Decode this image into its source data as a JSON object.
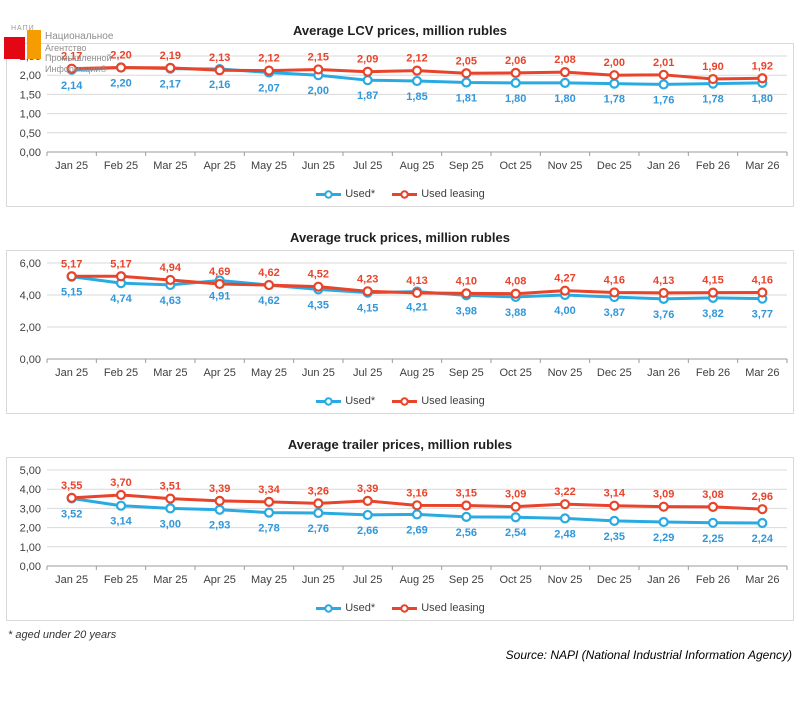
{
  "logo": {
    "mark": "НАПИ",
    "lines": [
      "Национальное",
      "Агентство",
      "Промышленной",
      "Информации®"
    ],
    "red": "#e30613",
    "orange": "#f59c00"
  },
  "colors": {
    "used_line": "#29abe2",
    "used_label": "#3097db",
    "leasing_line": "#e8442b",
    "leasing_label": "#e8442b",
    "grid": "#d9d9d9",
    "axis": "#9b9b9b",
    "tick_text": "#3f3f3f"
  },
  "footnote": "* aged under 20 years",
  "source": "Source: NAPI (National Industrial Information Agency)",
  "chart_data": [
    {
      "type": "line",
      "title": "Average LCV prices, million rubles",
      "categories": [
        "Jan 25",
        "Feb 25",
        "Mar 25",
        "Apr 25",
        "May 25",
        "Jun 25",
        "Jul 25",
        "Aug 25",
        "Sep 25",
        "Oct 25",
        "Nov 25",
        "Dec 25",
        "Jan 26",
        "Feb 26",
        "Mar 26"
      ],
      "ylim": [
        0,
        2.5
      ],
      "yticks": [
        "0,00",
        "0,50",
        "1,00",
        "1,50",
        "2,00",
        "2,50"
      ],
      "grid": true,
      "legend_position": "bottom",
      "decimal_separator": ",",
      "series": [
        {
          "name": "Used*",
          "color": "#29abe2",
          "label_color": "#3097db",
          "label_position": "below",
          "values": [
            2.14,
            2.2,
            2.17,
            2.16,
            2.07,
            2.0,
            1.87,
            1.85,
            1.81,
            1.8,
            1.8,
            1.78,
            1.76,
            1.78,
            1.8
          ]
        },
        {
          "name": "Used leasing",
          "color": "#e8442b",
          "label_color": "#e8442b",
          "label_position": "above",
          "values": [
            2.17,
            2.2,
            2.19,
            2.13,
            2.12,
            2.15,
            2.09,
            2.12,
            2.05,
            2.06,
            2.08,
            2.0,
            2.01,
            1.9,
            1.92
          ]
        }
      ]
    },
    {
      "type": "line",
      "title": "Average truck prices, million rubles",
      "categories": [
        "Jan 25",
        "Feb 25",
        "Mar 25",
        "Apr 25",
        "May 25",
        "Jun 25",
        "Jul 25",
        "Aug 25",
        "Sep 25",
        "Oct 25",
        "Nov 25",
        "Dec 25",
        "Jan 26",
        "Feb 26",
        "Mar 26"
      ],
      "ylim": [
        0,
        6
      ],
      "yticks": [
        "0,00",
        "2,00",
        "4,00",
        "6,00"
      ],
      "grid": true,
      "legend_position": "bottom",
      "decimal_separator": ",",
      "series": [
        {
          "name": "Used*",
          "color": "#29abe2",
          "label_color": "#3097db",
          "label_position": "below",
          "values": [
            5.15,
            4.74,
            4.63,
            4.91,
            4.62,
            4.35,
            4.15,
            4.21,
            3.98,
            3.88,
            4.0,
            3.87,
            3.76,
            3.82,
            3.77
          ]
        },
        {
          "name": "Used leasing",
          "color": "#e8442b",
          "label_color": "#e8442b",
          "label_position": "above",
          "values": [
            5.17,
            5.17,
            4.94,
            4.69,
            4.62,
            4.52,
            4.23,
            4.13,
            4.1,
            4.08,
            4.27,
            4.16,
            4.13,
            4.15,
            4.16
          ]
        }
      ]
    },
    {
      "type": "line",
      "title": "Average trailer prices, million rubles",
      "categories": [
        "Jan 25",
        "Feb 25",
        "Mar 25",
        "Apr 25",
        "May 25",
        "Jun 25",
        "Jul 25",
        "Aug 25",
        "Sep 25",
        "Oct 25",
        "Nov 25",
        "Dec 25",
        "Jan 26",
        "Feb 26",
        "Mar 26"
      ],
      "ylim": [
        0,
        5
      ],
      "yticks": [
        "0,00",
        "1,00",
        "2,00",
        "3,00",
        "4,00",
        "5,00"
      ],
      "grid": true,
      "legend_position": "bottom",
      "decimal_separator": ",",
      "series": [
        {
          "name": "Used*",
          "color": "#29abe2",
          "label_color": "#3097db",
          "label_position": "below",
          "values": [
            3.52,
            3.14,
            3.0,
            2.93,
            2.78,
            2.76,
            2.66,
            2.69,
            2.56,
            2.54,
            2.48,
            2.35,
            2.29,
            2.25,
            2.24
          ]
        },
        {
          "name": "Used leasing",
          "color": "#e8442b",
          "label_color": "#e8442b",
          "label_position": "above",
          "values": [
            3.55,
            3.7,
            3.51,
            3.39,
            3.34,
            3.26,
            3.39,
            3.16,
            3.15,
            3.09,
            3.22,
            3.14,
            3.09,
            3.08,
            2.96
          ]
        }
      ]
    }
  ]
}
